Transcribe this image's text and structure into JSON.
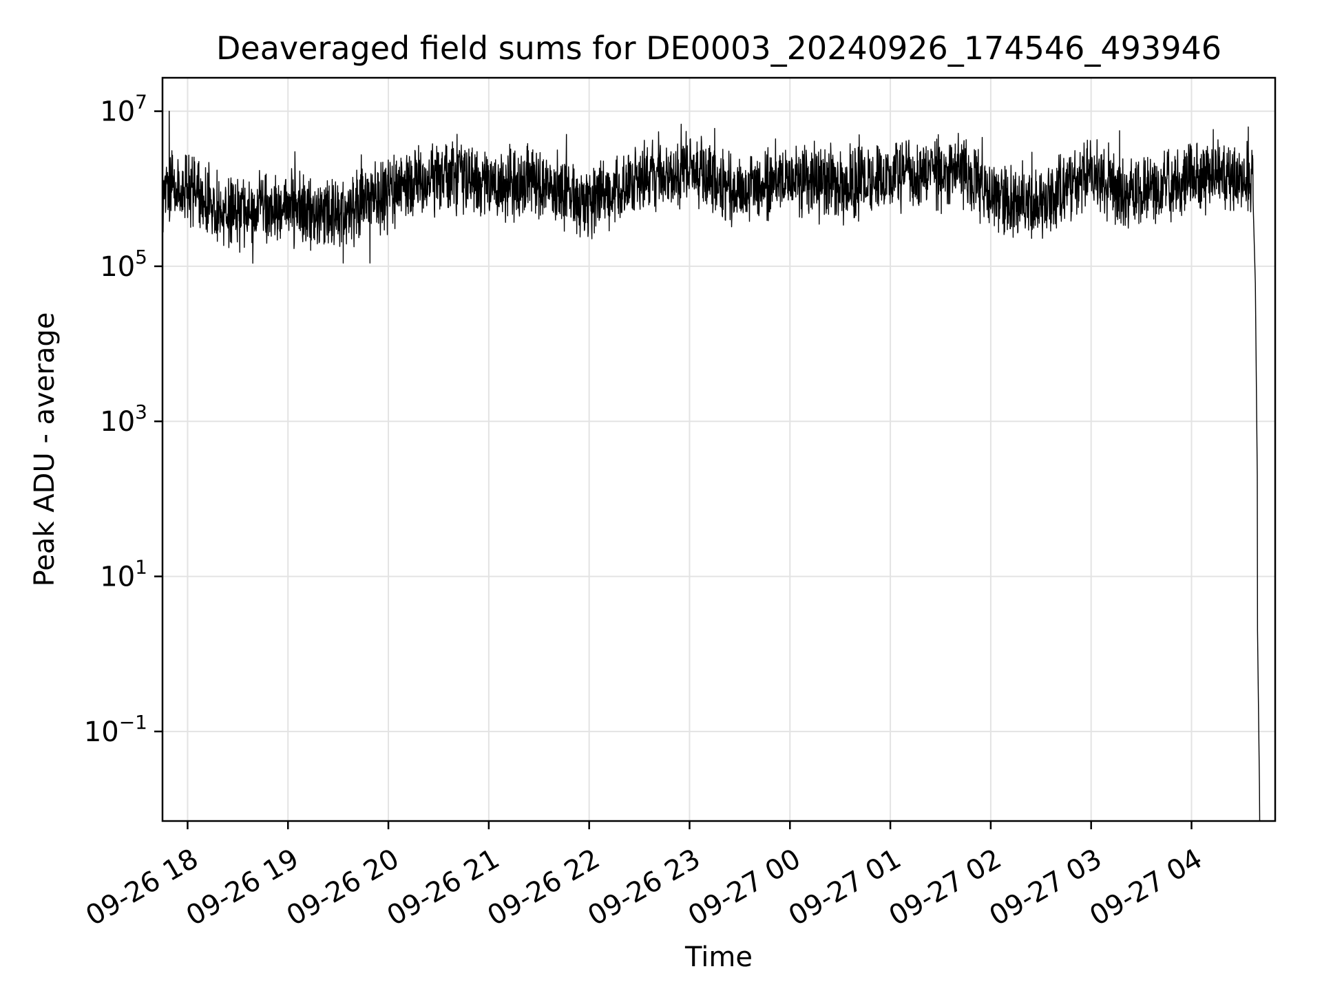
{
  "chart_data": {
    "type": "line",
    "title": "Deaveraged field sums for DE0003_20240926_174546_493946",
    "xlabel": "Time",
    "ylabel": "Peak ADU - average",
    "yscale": "log",
    "grid": true,
    "legend": "none",
    "colors": {
      "series": "#000000",
      "grid": "#e3e3e3",
      "axes": "#000000"
    },
    "xlim": [
      "2024-09-26 17:45",
      "2024-09-27 04:50"
    ],
    "ylim": [
      0.007,
      27000000
    ],
    "x_ticks": [
      {
        "value": "2024-09-26 18:00",
        "label": "09-26 18"
      },
      {
        "value": "2024-09-26 19:00",
        "label": "09-26 19"
      },
      {
        "value": "2024-09-26 20:00",
        "label": "09-26 20"
      },
      {
        "value": "2024-09-26 21:00",
        "label": "09-26 21"
      },
      {
        "value": "2024-09-26 22:00",
        "label": "09-26 22"
      },
      {
        "value": "2024-09-26 23:00",
        "label": "09-26 23"
      },
      {
        "value": "2024-09-27 00:00",
        "label": "09-27 00"
      },
      {
        "value": "2024-09-27 01:00",
        "label": "09-27 01"
      },
      {
        "value": "2024-09-27 02:00",
        "label": "09-27 02"
      },
      {
        "value": "2024-09-27 03:00",
        "label": "09-27 03"
      },
      {
        "value": "2024-09-27 04:00",
        "label": "09-27 04"
      }
    ],
    "y_ticks": [
      {
        "value": 0.1,
        "base": "10",
        "exp": "−1"
      },
      {
        "value": 10,
        "base": "10",
        "exp": "1"
      },
      {
        "value": 1000,
        "base": "10",
        "exp": "3"
      },
      {
        "value": 100000,
        "base": "10",
        "exp": "5"
      },
      {
        "value": 10000000,
        "base": "10",
        "exp": "7"
      }
    ],
    "series": [
      {
        "band_baseline": [
          [
            "2024-09-26 17:45",
            900000
          ],
          [
            "2024-09-26 18:00",
            1000000
          ],
          [
            "2024-09-26 18:30",
            500000
          ],
          [
            "2024-09-26 19:00",
            550000
          ],
          [
            "2024-09-26 19:30",
            450000
          ],
          [
            "2024-09-26 20:00",
            900000
          ],
          [
            "2024-09-26 20:30",
            1500000
          ],
          [
            "2024-09-26 20:45",
            1400000
          ],
          [
            "2024-09-26 21:00",
            1000000
          ],
          [
            "2024-09-26 21:30",
            1300000
          ],
          [
            "2024-09-26 22:00",
            650000
          ],
          [
            "2024-09-26 22:30",
            1400000
          ],
          [
            "2024-09-26 23:00",
            1800000
          ],
          [
            "2024-09-26 23:30",
            900000
          ],
          [
            "2024-09-27 00:00",
            1300000
          ],
          [
            "2024-09-27 00:30",
            1100000
          ],
          [
            "2024-09-27 01:00",
            1500000
          ],
          [
            "2024-09-27 01:45",
            1600000
          ],
          [
            "2024-09-27 02:00",
            850000
          ],
          [
            "2024-09-27 02:30",
            650000
          ],
          [
            "2024-09-27 03:00",
            1700000
          ],
          [
            "2024-09-27 03:30",
            800000
          ],
          [
            "2024-09-27 04:00",
            1500000
          ],
          [
            "2024-09-27 04:35",
            1300000
          ]
        ],
        "band_spread_decades": 0.55,
        "peak_spikes": [
          [
            "2024-09-26 17:49",
            10000000
          ],
          [
            "2024-09-26 22:55",
            6800000
          ],
          [
            "2024-09-26 23:15",
            6000000
          ],
          [
            "2024-09-27 03:17",
            5600000
          ],
          [
            "2024-09-27 04:13",
            5800000
          ]
        ],
        "minimum_dips": [
          [
            "2024-09-26 19:33",
            110000
          ],
          [
            "2024-09-26 19:49",
            110000
          ]
        ],
        "end_drop": [
          [
            "2024-09-27 04:37",
            1300000
          ],
          [
            "2024-09-27 04:38",
            60000
          ],
          [
            "2024-09-27 04:39",
            200
          ],
          [
            "2024-09-27 04:39",
            2
          ],
          [
            "2024-09-27 04:40",
            0.02
          ],
          [
            "2024-09-27 04:40",
            0.007
          ]
        ]
      }
    ]
  }
}
